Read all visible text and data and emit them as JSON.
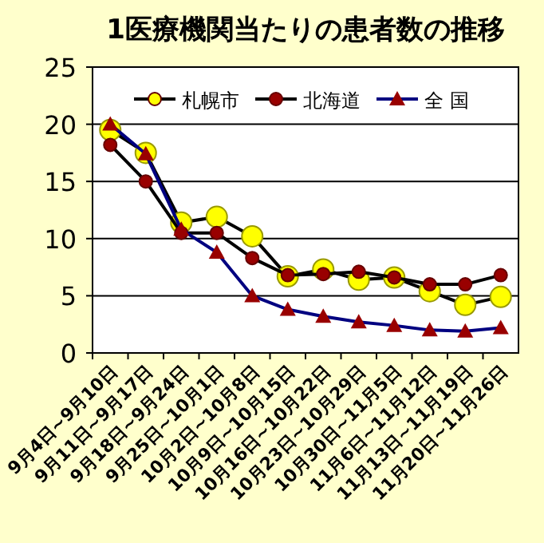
{
  "chart_data": {
    "type": "line",
    "title": "1医療機関当たりの患者数の推移",
    "categories": [
      "9月4日~9月10日",
      "9月11日~9月17日",
      "9月18日~9月24日",
      "9月25日~10月1日",
      "10月2日~10月8日",
      "10月9日~10月15日",
      "10月16日~10月22日",
      "10月23日~10月29日",
      "10月30日~11月5日",
      "11月6日~11月12日",
      "11月13日~11月19日",
      "11月20日~11月26日"
    ],
    "series": [
      {
        "name": "札幌市",
        "color": "#000000",
        "marker": "circle",
        "values": [
          19.5,
          17.5,
          11.4,
          11.9,
          10.2,
          6.7,
          7.3,
          6.4,
          6.6,
          5.4,
          4.2,
          4.9
        ]
      },
      {
        "name": "北海道",
        "color": "#000000",
        "marker": "circle",
        "values": [
          18.2,
          15.0,
          10.5,
          10.5,
          8.3,
          6.8,
          6.9,
          7.1,
          6.6,
          6.0,
          6.0,
          6.8
        ]
      },
      {
        "name": "全 国",
        "color": "#000080",
        "marker": "triangle",
        "values": [
          20.0,
          17.4,
          10.8,
          8.8,
          5.0,
          3.8,
          3.2,
          2.7,
          2.4,
          2.0,
          1.9,
          2.2
        ]
      }
    ],
    "ylim": [
      0,
      25
    ],
    "yticks": [
      0,
      5,
      10,
      15,
      20,
      25
    ],
    "grid": "y",
    "legend": "top"
  }
}
